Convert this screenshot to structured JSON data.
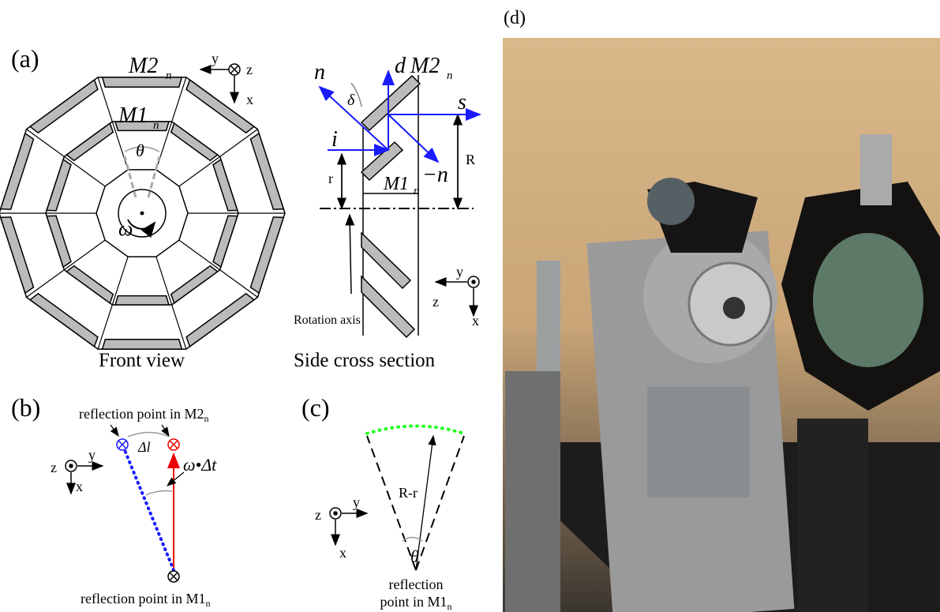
{
  "panel_a": {
    "label": "(a)",
    "front_caption": "Front view",
    "side_caption": "Side cross section",
    "front": {
      "m2": "M2",
      "m2_sub": "n",
      "m1": "M1",
      "m1_sub": "n",
      "theta": "θ",
      "omega": "ω",
      "axis_y": "y",
      "axis_z": "z",
      "axis_x": "x"
    },
    "side": {
      "n": "n",
      "d": "d",
      "m2": "M2",
      "m2_sub": "n",
      "delta": "δ",
      "s": "s",
      "i": "i",
      "neg_n": "−n",
      "big_r": "R",
      "small_r": "r",
      "m1": "M1",
      "m1_sub": "n",
      "rotation_axis": "Rotation axis",
      "axis_y": "y",
      "axis_z": "z",
      "axis_x": "x"
    }
  },
  "panel_b": {
    "label": "(b)",
    "m2_point": "reflection point in M2",
    "m2_point_sub": "n",
    "delta_l": "Δl",
    "omega_dt": "ω•Δt",
    "m1_point": "reflection point in M1",
    "m1_point_sub": "n",
    "axis_z": "z",
    "axis_y": "y",
    "axis_x": "x"
  },
  "panel_c": {
    "label": "(c)",
    "r_minus_r": "R-r",
    "theta": "θ",
    "m1_point_line1": "reflection",
    "m1_point_line2": "point in M1",
    "m1_point_sub": "n",
    "axis_z": "z",
    "axis_y": "y",
    "axis_x": "x"
  },
  "panel_d": {
    "label": "(d)"
  }
}
